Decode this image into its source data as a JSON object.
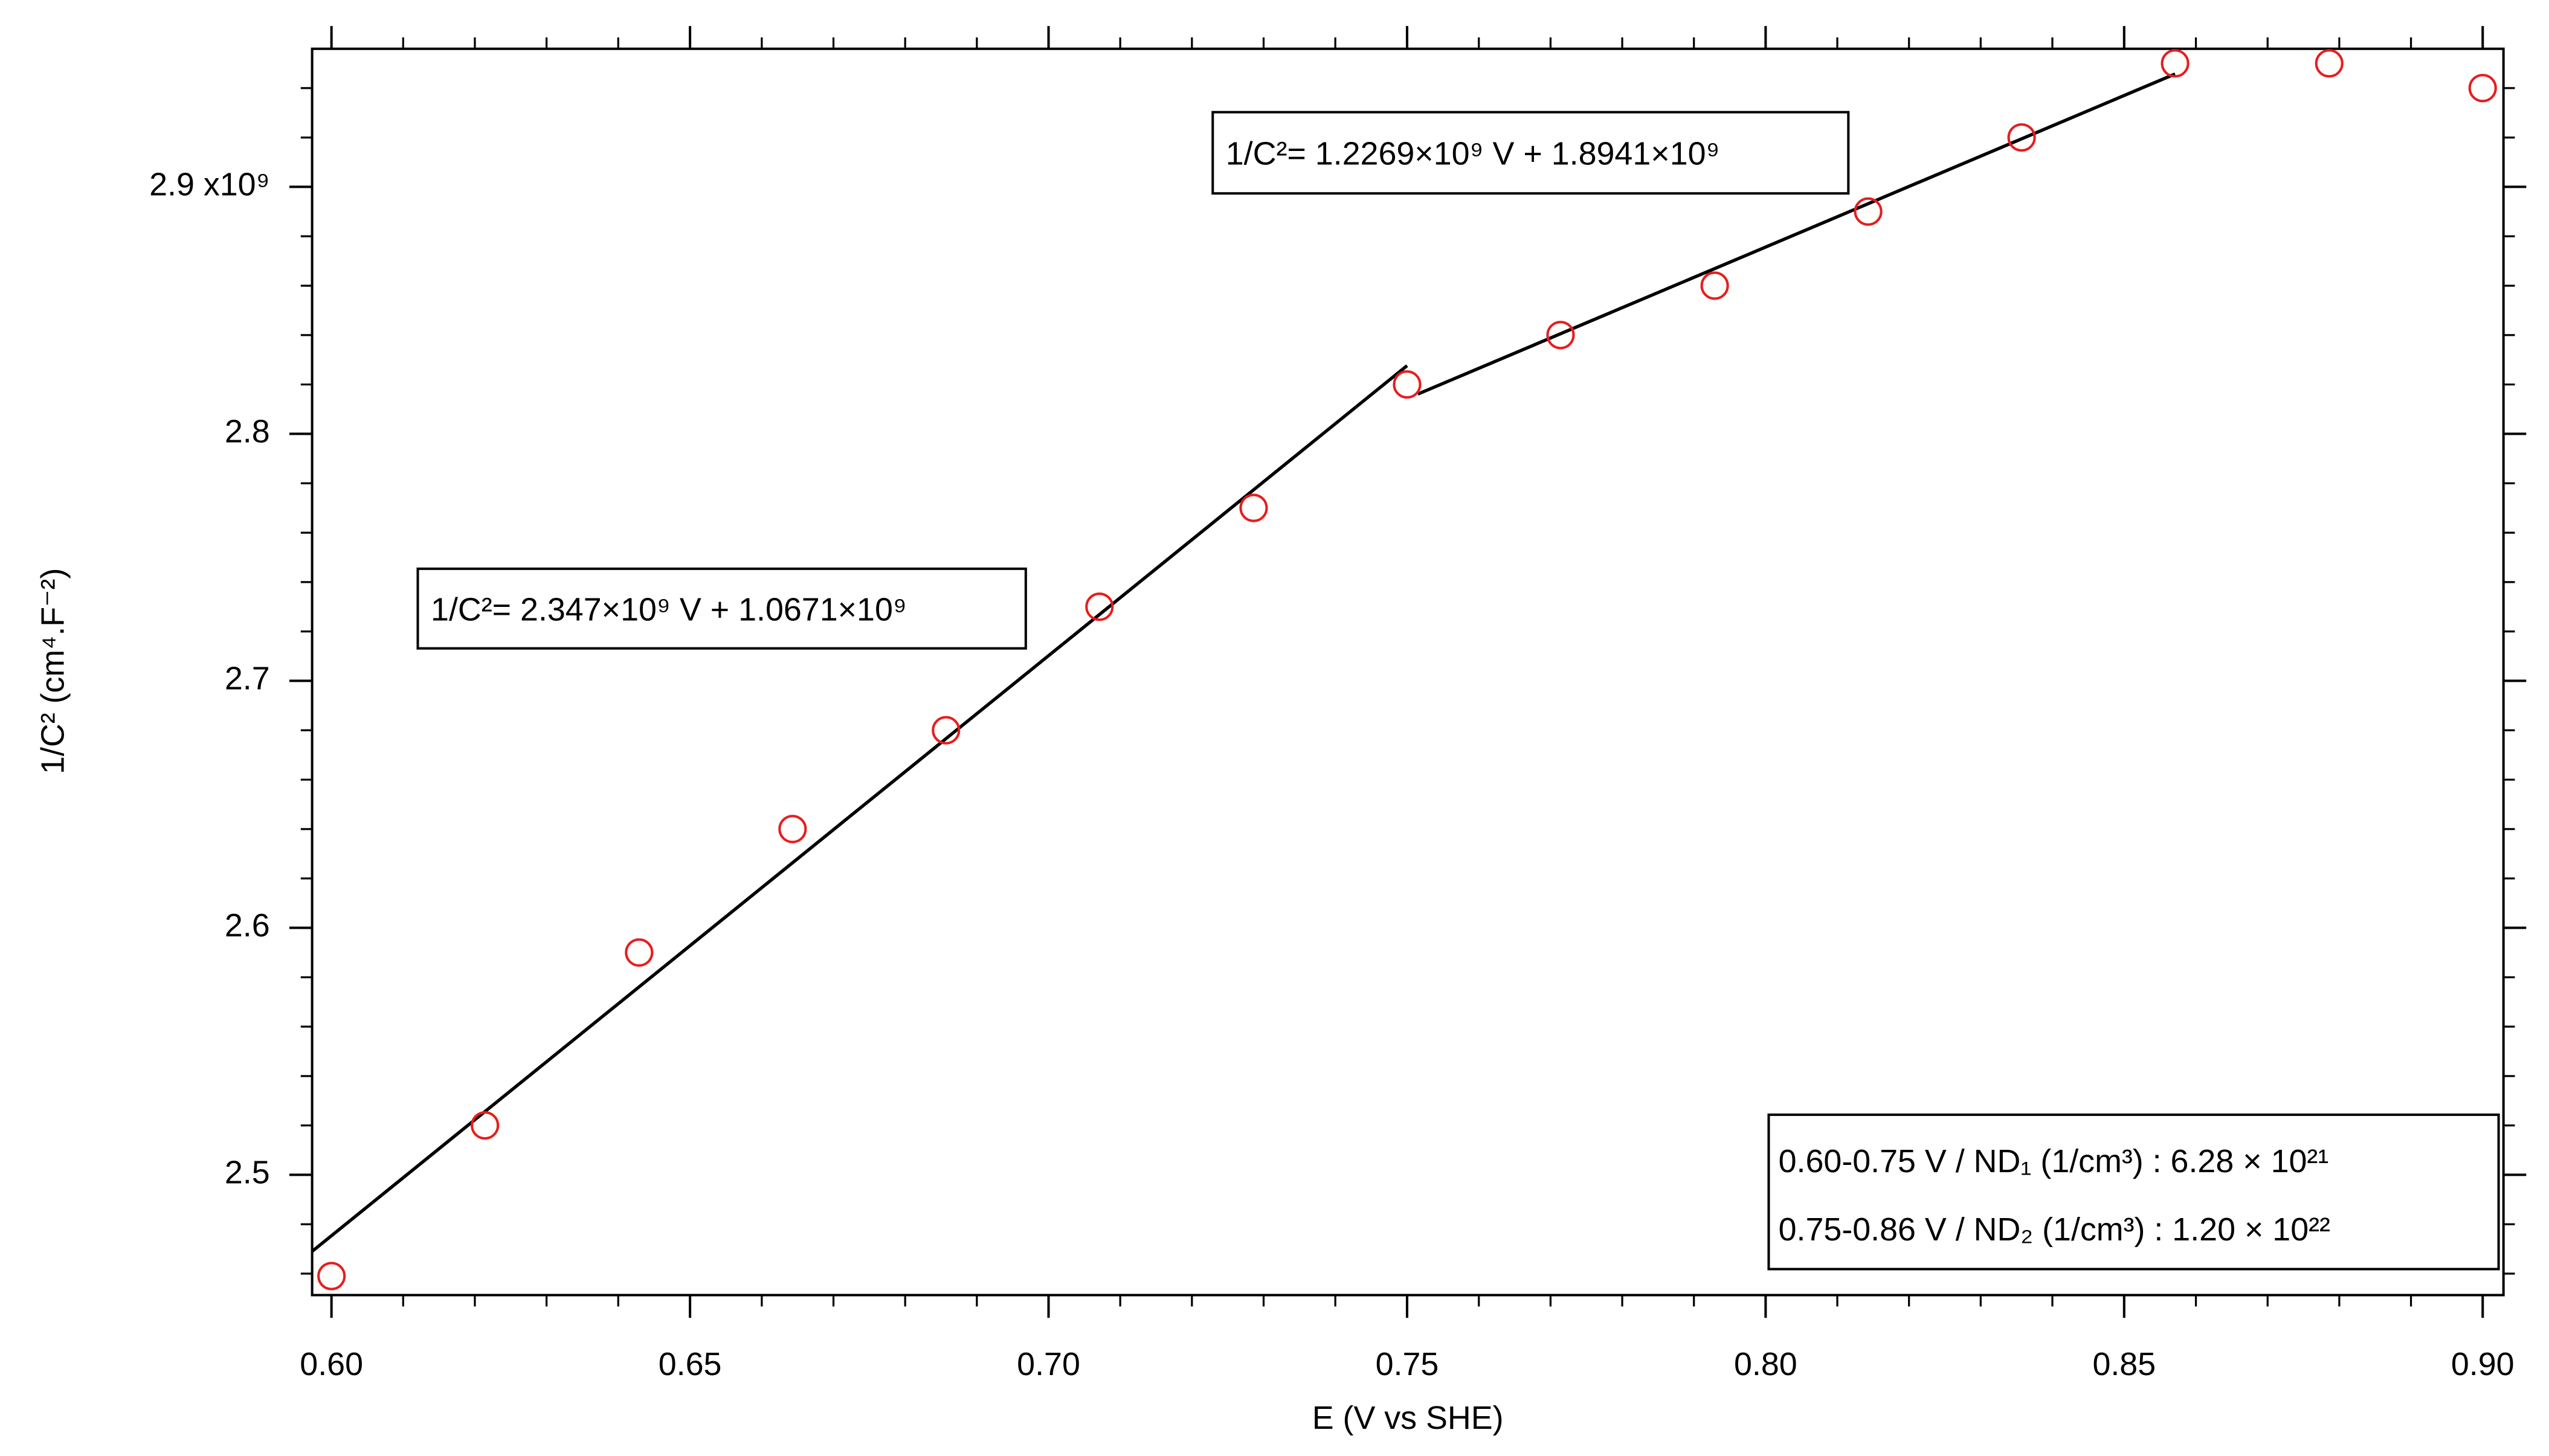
{
  "chart_data": {
    "type": "scatter",
    "x_label": "E (V vs SHE)",
    "y_label": "1/C² (cm⁴.F⁻²)",
    "x": [
      0.6,
      0.6214,
      0.6429,
      0.6643,
      0.6857,
      0.7071,
      0.7286,
      0.75,
      0.7714,
      0.7929,
      0.8143,
      0.8357,
      0.8571,
      0.8786,
      0.9
    ],
    "values": [
      2.459,
      2.52,
      2.59,
      2.64,
      2.68,
      2.73,
      2.77,
      2.82,
      2.84,
      2.86,
      2.89,
      2.92,
      2.95,
      2.95,
      2.94
    ],
    "color": "#e81c1c",
    "fit_lines": [
      {
        "x": [
          0.5973,
          0.75
        ],
        "values": [
          2.469,
          2.8276
        ],
        "equation": "1/C²= 2.347×10⁹ V + 1.0671×10⁹",
        "color": "#000000"
      },
      {
        "x": [
          0.7515,
          0.8571
        ],
        "values": [
          2.8161,
          2.9457
        ],
        "equation": "1/C²= 1.2269×10⁹ V + 1.8941×10⁹",
        "color": "#000000"
      }
    ],
    "annotations": [
      "0.60-0.75 V / ND₁ (1/cm³) : 6.28 × 10²¹",
      "0.75-0.86 V / ND₂ (1/cm³) : 1.20 × 10²²"
    ],
    "xlim": [
      0.5973,
      0.9029
    ],
    "ylim": [
      2.4513,
      2.9559
    ],
    "xticks": [
      {
        "value": 0.6,
        "label": "0.60"
      },
      0.65,
      {
        "value": 0.7,
        "label": "0.70"
      },
      0.75,
      {
        "value": 0.8,
        "label": "0.80"
      },
      0.85,
      {
        "value": 0.9,
        "label": "0.90"
      }
    ],
    "yticks": [
      2.5,
      2.6,
      2.7,
      2.8,
      {
        "value": 2.9,
        "label": "2.9 x10⁹"
      }
    ]
  }
}
